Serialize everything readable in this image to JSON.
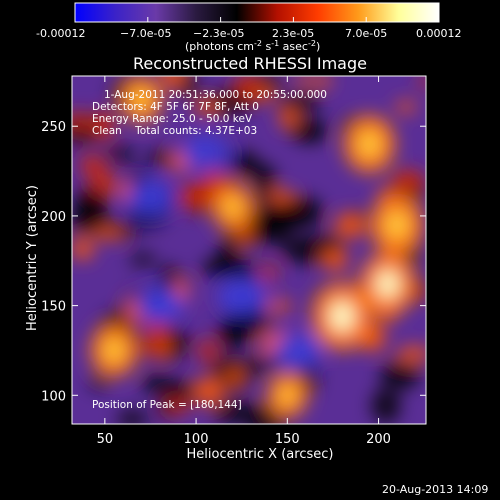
{
  "colorbar": {
    "tick_labels": [
      "-0.00012",
      "−7.0e-05",
      "−2.3e-05",
      "2.3e-05",
      "7.0e-05",
      "0.00012"
    ],
    "unit_label": "(photons cm",
    "unit_exp1": "-2",
    "unit_mid": " s",
    "unit_exp2": "-1",
    "unit_mid2": " asec",
    "unit_exp3": "-2",
    "unit_end": ")",
    "colormap": [
      "#0000ff",
      "#3b22c8",
      "#6a3aa8",
      "#2a1a40",
      "#000000",
      "#b31000",
      "#ff3c00",
      "#ff9a1a",
      "#ffff9a",
      "#ffffff"
    ]
  },
  "chart_data": {
    "type": "heatmap",
    "title": "Reconstructed RHESSI Image",
    "xlabel": "Heliocentric X (arcsec)",
    "ylabel": "Heliocentric Y (arcsec)",
    "xlim": [
      32,
      226
    ],
    "ylim": [
      84,
      278
    ],
    "xticks": [
      50,
      100,
      150,
      200
    ],
    "yticks": [
      100,
      150,
      200,
      250
    ],
    "clim": [
      -0.00012,
      0.00012
    ],
    "peak_position": [
      180,
      144
    ],
    "bright_regions": [
      {
        "x": 180,
        "y": 144,
        "level": 1.0
      },
      {
        "x": 205,
        "y": 162,
        "level": 0.9
      },
      {
        "x": 210,
        "y": 195,
        "level": 0.85
      },
      {
        "x": 195,
        "y": 240,
        "level": 0.8
      },
      {
        "x": 55,
        "y": 125,
        "level": 0.7
      },
      {
        "x": 120,
        "y": 205,
        "level": 0.6
      },
      {
        "x": 70,
        "y": 265,
        "level": 0.6
      },
      {
        "x": 150,
        "y": 100,
        "level": 0.55
      }
    ],
    "dark_regions": [
      {
        "x": 75,
        "y": 210,
        "level": -0.6
      },
      {
        "x": 105,
        "y": 235,
        "level": -0.5
      },
      {
        "x": 80,
        "y": 150,
        "level": -0.45
      },
      {
        "x": 155,
        "y": 125,
        "level": -0.55
      },
      {
        "x": 125,
        "y": 155,
        "level": -0.4
      }
    ]
  },
  "info": {
    "line1": "1-Aug-2011 20:51:36.000 to 20:55:00.000",
    "line2": "Detectors: 4F 5F 6F 7F 8F, Att 0",
    "line3": "Energy Range: 25.0 - 50.0 keV",
    "line4": "Clean    Total counts: 4.37E+03",
    "peak": "Position of Peak = [180,144]"
  },
  "footer": {
    "timestamp": "20-Aug-2013 14:09"
  }
}
